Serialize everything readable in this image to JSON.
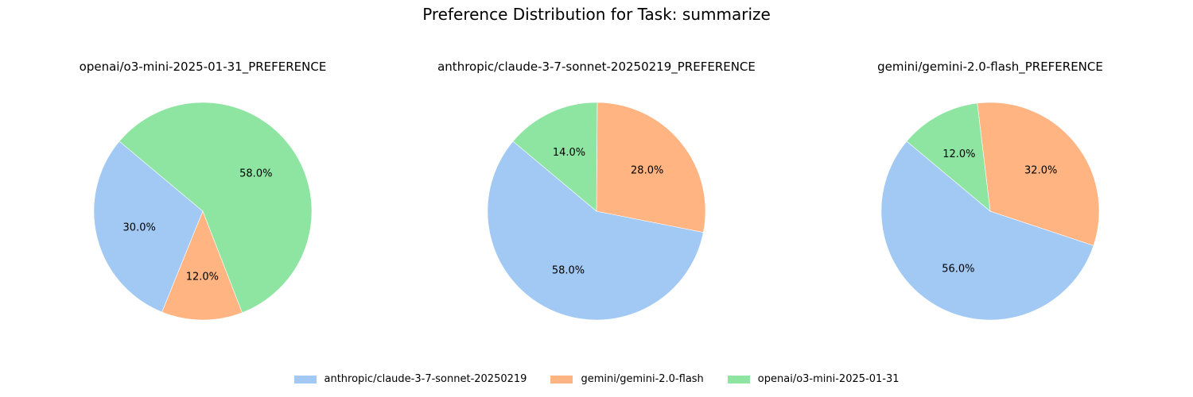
{
  "chart_data": {
    "type": "pie",
    "title": "Preference Distribution for Task: summarize",
    "categories": [
      "anthropic/claude-3-7-sonnet-20250219",
      "gemini/gemini-2.0-flash",
      "openai/o3-mini-2025-01-31"
    ],
    "colors": [
      "#a1c9f4",
      "#ffb482",
      "#8de5a1"
    ],
    "legend_position": "bottom-center",
    "charts": [
      {
        "title": "openai/o3-mini-2025-01-31_PREFERENCE",
        "values": [
          30.0,
          12.0,
          58.0
        ],
        "labels": [
          "30.0%",
          "12.0%",
          "58.0%"
        ]
      },
      {
        "title": "anthropic/claude-3-7-sonnet-20250219_PREFERENCE",
        "values": [
          58.0,
          28.0,
          14.0
        ],
        "labels": [
          "58.0%",
          "28.0%",
          "14.0%"
        ]
      },
      {
        "title": "gemini/gemini-2.0-flash_PREFERENCE",
        "values": [
          56.0,
          32.0,
          12.0
        ],
        "labels": [
          "56.0%",
          "32.0%",
          "12.0%"
        ]
      }
    ]
  }
}
